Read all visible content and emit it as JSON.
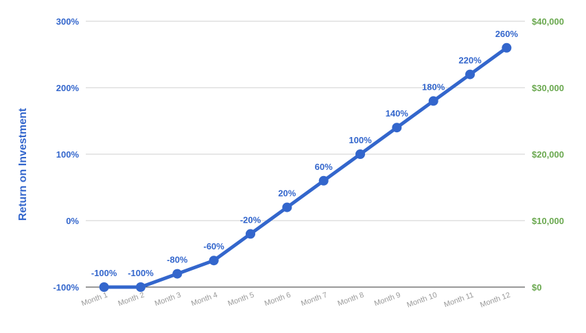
{
  "chart_data": {
    "type": "line",
    "title": "",
    "xlabel": "",
    "ylabel": "Return on Investment",
    "y2label": "",
    "categories": [
      "Month 1",
      "Month 2",
      "Month 3",
      "Month 4",
      "Month 5",
      "Month 6",
      "Month 7",
      "Month 8",
      "Month 9",
      "Month 10",
      "Month 11",
      "Month 12"
    ],
    "series": [
      {
        "values": [
          -100,
          -100,
          -80,
          -60,
          -20,
          20,
          60,
          100,
          140,
          180,
          220,
          260
        ],
        "data_labels": [
          "-100%",
          "-100%",
          "-80%",
          "-60%",
          "-20%",
          "20%",
          "60%",
          "100%",
          "140%",
          "180%",
          "220%",
          "260%"
        ],
        "color": "#3366cc"
      }
    ],
    "ylim": [
      -100,
      300
    ],
    "yticks": [
      -100,
      0,
      100,
      200,
      300
    ],
    "ytick_labels": [
      "-100%",
      "0%",
      "100%",
      "200%",
      "300%"
    ],
    "y2lim": [
      0,
      40000
    ],
    "y2ticks": [
      0,
      10000,
      20000,
      30000,
      40000
    ],
    "y2tick_labels": [
      "$0",
      "$10,000",
      "$20,000",
      "$30,000",
      "$40,000"
    ],
    "grid": true,
    "legend": "none",
    "colors": {
      "line": "#3366cc",
      "left_axis": "#3366cc",
      "right_axis": "#6aa84f",
      "x_axis": "#999999",
      "grid": "#cfcfcf"
    }
  }
}
